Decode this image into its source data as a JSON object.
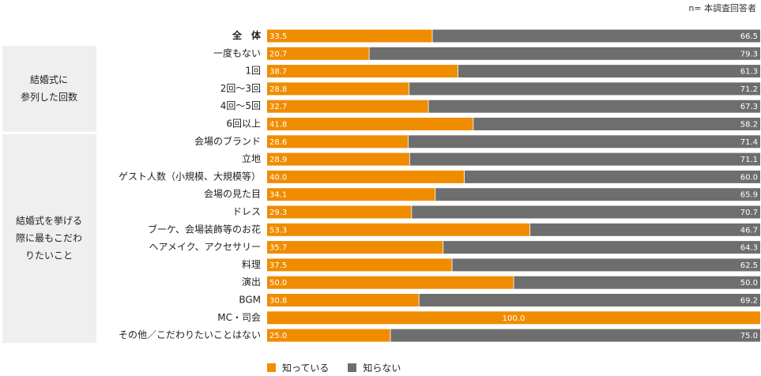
{
  "note": "n= 本調査回答者",
  "legend": {
    "known_label": "知っている",
    "unknown_label": "知らない"
  },
  "colors": {
    "known": "#F08C00",
    "unknown": "#6E6E6E",
    "group_bg": "#EFEFEF",
    "value_text": "#ffffff"
  },
  "chart_data": {
    "type": "bar",
    "orientation": "horizontal",
    "stacked": true,
    "xlim": [
      0,
      100
    ],
    "categories": [
      "全　体",
      "一度もない",
      "1回",
      "2回〜3回",
      "4回〜5回",
      "6回以上",
      "会場のブランド",
      "立地",
      "ゲスト人数（小規模、大規模等）",
      "会場の見た目",
      "ドレス",
      "ブーケ、会場装飾等のお花",
      "ヘアメイク、アクセサリー",
      "料理",
      "演出",
      "BGM",
      "MC・司会",
      "その他／こだわりたいことはない"
    ],
    "series": [
      {
        "name": "知っている",
        "values": [
          33.5,
          20.7,
          38.7,
          28.8,
          32.7,
          41.8,
          28.6,
          28.9,
          40.0,
          34.1,
          29.3,
          53.3,
          35.7,
          37.5,
          50.0,
          30.8,
          100.0,
          25.0
        ],
        "labels": [
          "33.5",
          "20.7",
          "38.7",
          "28.8",
          "32.7",
          "41.8",
          "28.6",
          "28.9",
          "40.0",
          "34.1",
          "29.3",
          "53.3",
          "35.7",
          "37.5",
          "50.0",
          "30.8",
          "100.0",
          "25.0"
        ]
      },
      {
        "name": "知らない",
        "values": [
          66.5,
          79.3,
          61.3,
          71.2,
          67.3,
          58.2,
          71.4,
          71.1,
          60.0,
          65.9,
          70.7,
          46.7,
          64.3,
          62.5,
          50.0,
          69.2,
          0,
          75.0
        ],
        "labels": [
          "66.5",
          "79.3",
          "61.3",
          "71.2",
          "67.3",
          "58.2",
          "71.4",
          "71.1",
          "60.0",
          "65.9",
          "70.7",
          "46.7",
          "64.3",
          "62.5",
          "50.0",
          "69.2",
          "",
          "75.0"
        ]
      }
    ],
    "groups": [
      {
        "lines": [
          "結婚式に",
          "参列した回数"
        ],
        "from": 1,
        "to": 5
      },
      {
        "lines": [
          "結婚式を挙げる",
          "際に最もこだわ",
          "りたいこと"
        ],
        "from": 6,
        "to": 17
      }
    ]
  }
}
